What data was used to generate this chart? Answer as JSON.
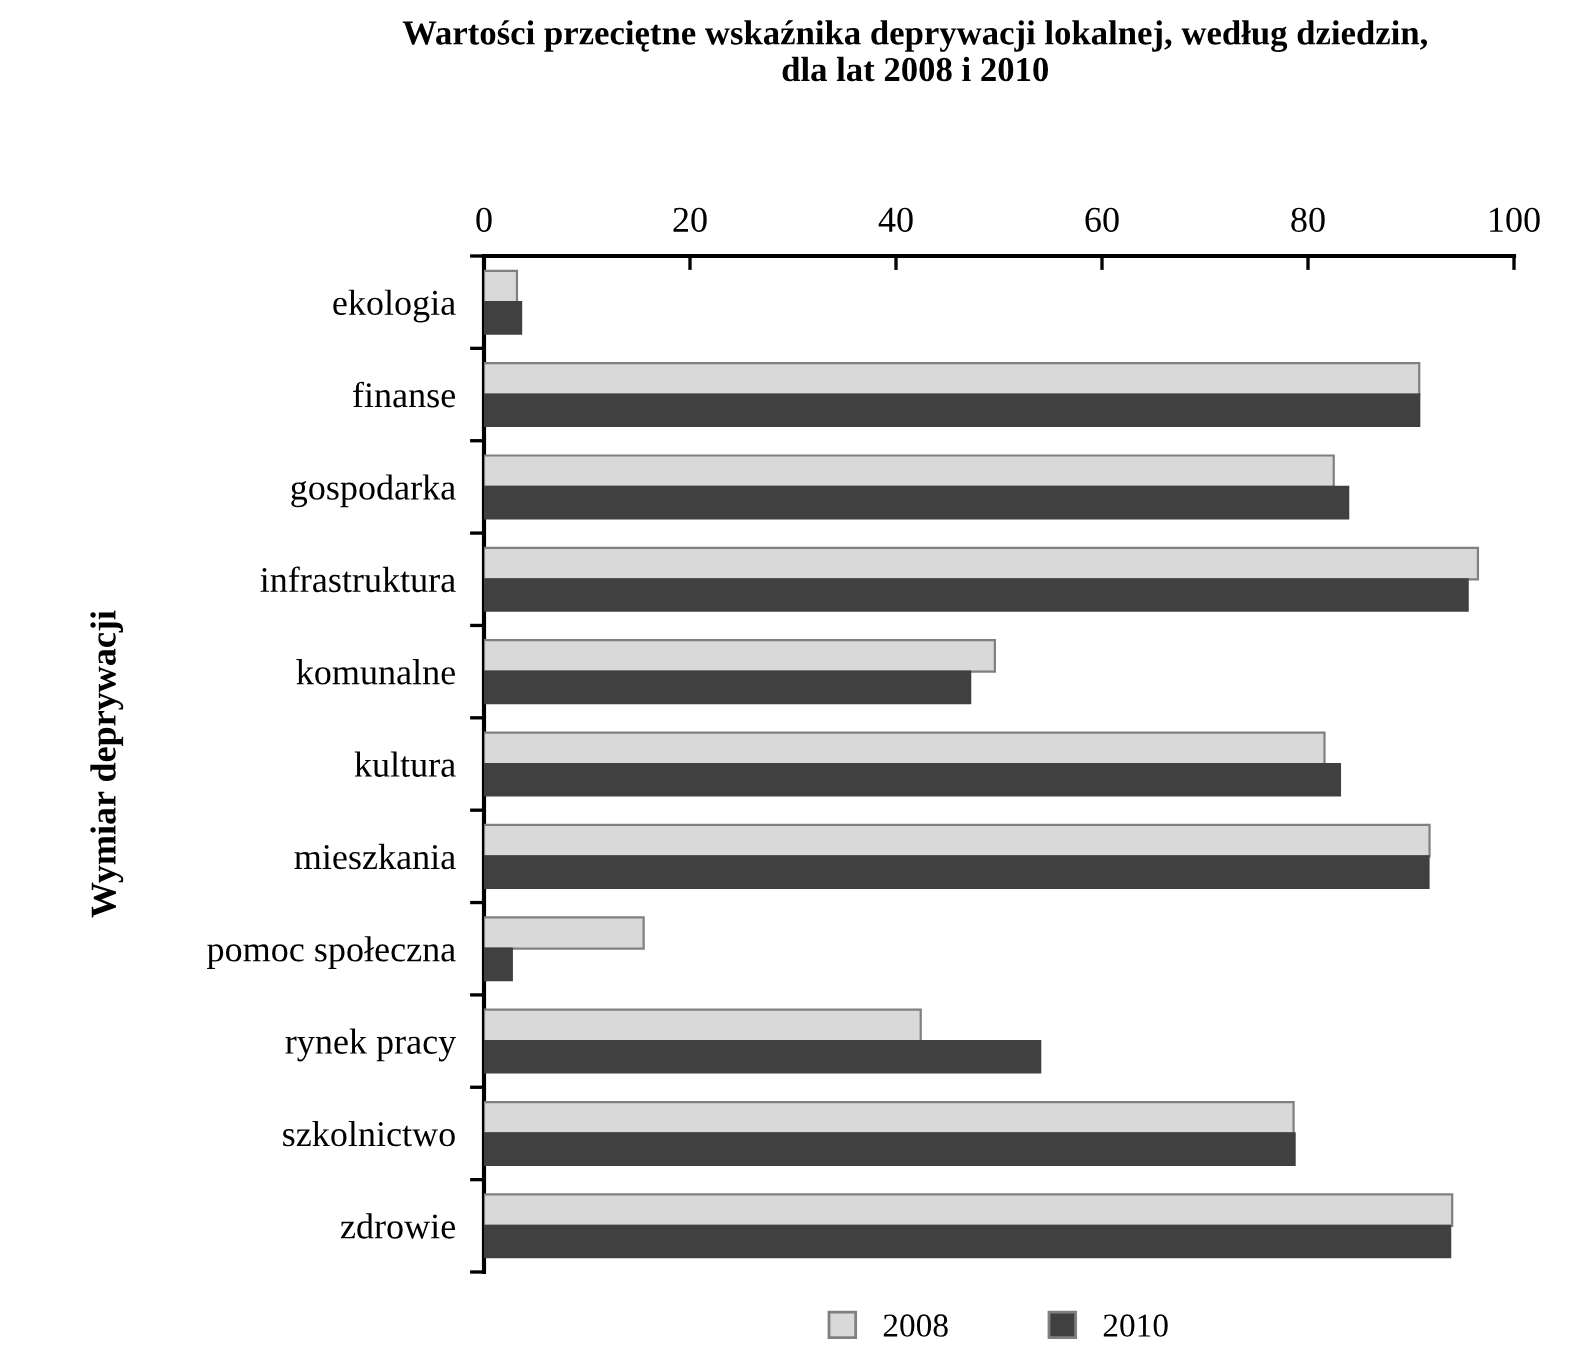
{
  "chart_data": {
    "type": "bar",
    "orientation": "horizontal",
    "title": "Wartości przeciętne wskaźnika deprywacji lokalnej, według dziedzin,\ndla lat 2008 i 2010",
    "ylabel": "Wymiar deprywacji",
    "categories": [
      "ekologia",
      "finanse",
      "gospodarka",
      "infrastruktura",
      "komunalne",
      "kultura",
      "mieszkania",
      "pomoc społeczna",
      "rynek pracy",
      "szkolnictwo",
      "zdrowie"
    ],
    "series": [
      {
        "name": "2008",
        "color": "#d9d9d9",
        "values": [
          3.2,
          90.8,
          82.5,
          96.5,
          49.6,
          81.6,
          91.8,
          15.5,
          42.4,
          78.6,
          94.0
        ]
      },
      {
        "name": "2010",
        "color": "#404040",
        "values": [
          3.6,
          90.8,
          83.9,
          95.5,
          47.2,
          83.1,
          91.7,
          2.7,
          54.0,
          78.7,
          93.8
        ]
      }
    ],
    "xlim": [
      0,
      100
    ],
    "xticks": [
      0,
      20,
      40,
      60,
      80,
      100
    ],
    "grid": false,
    "legend": "bottom"
  }
}
